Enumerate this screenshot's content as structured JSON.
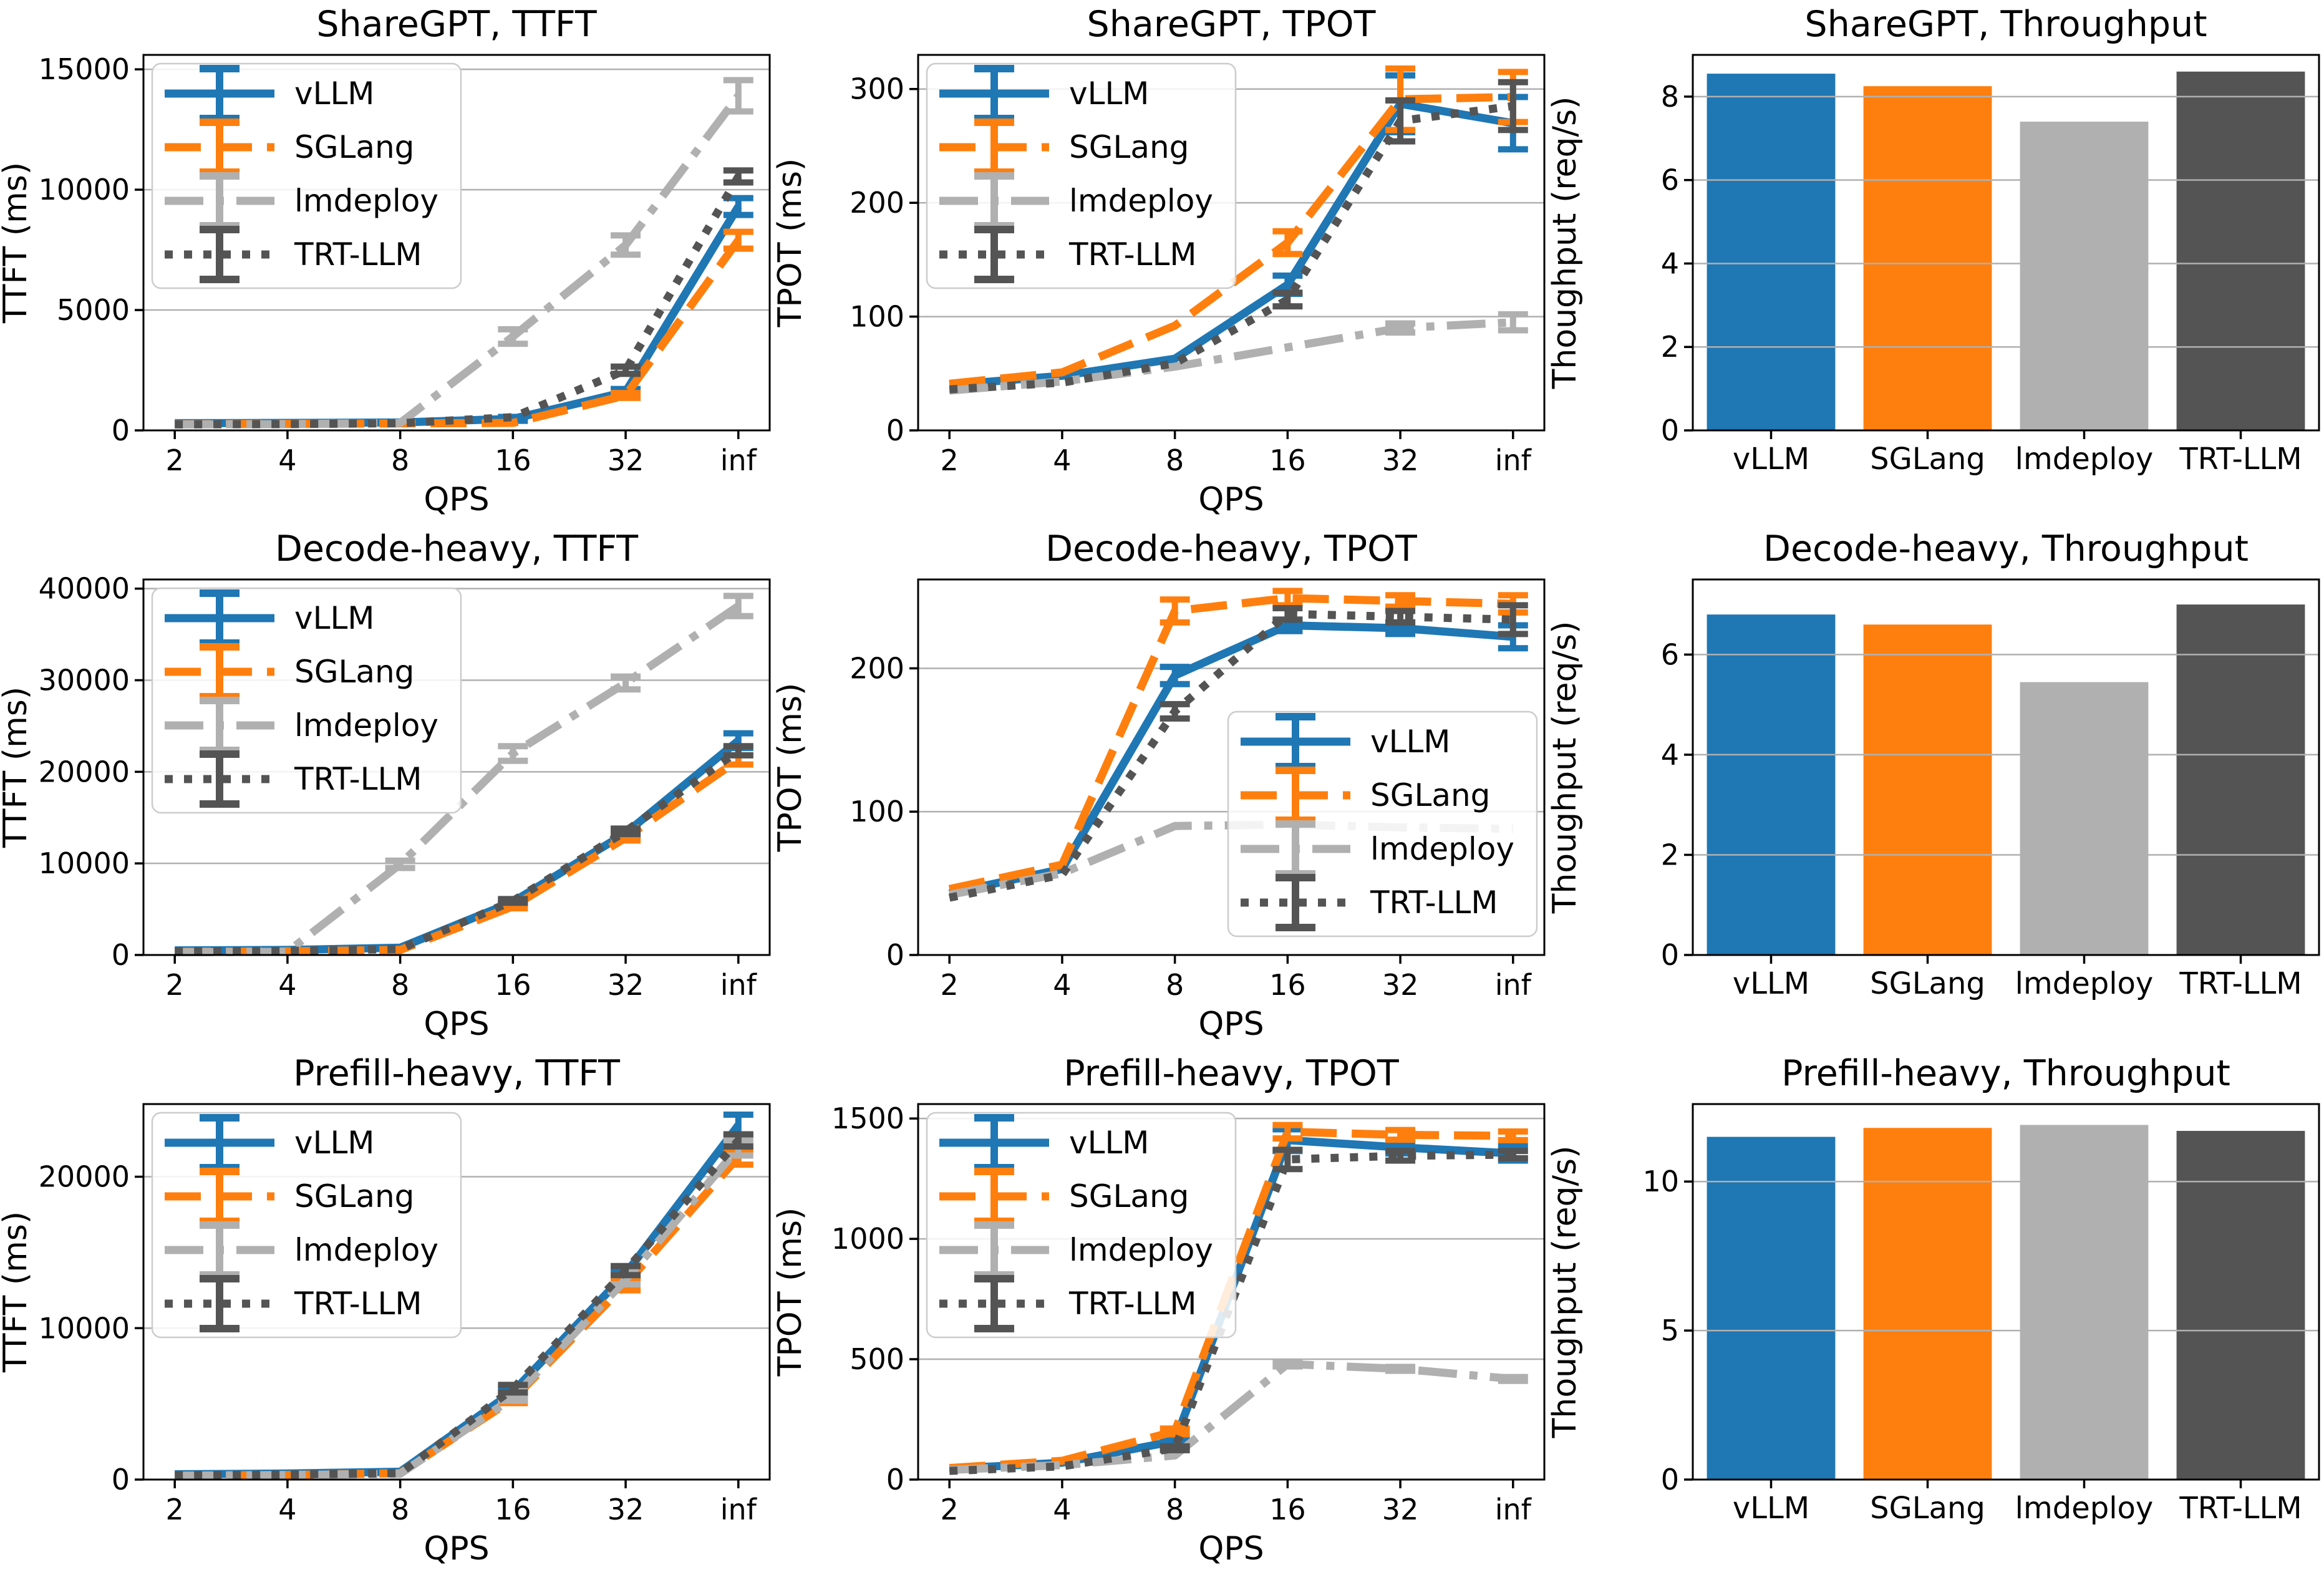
{
  "figure": {
    "background": "#ffffff",
    "frameworks": [
      "vLLM",
      "SGLang",
      "lmdeploy",
      "TRT-LLM"
    ],
    "accent_colors": {
      "vLLM": "#1f77b4",
      "SGLang": "#ff7f0e",
      "lmdeploy": "#b0b0b0",
      "TRT-LLM": "#545454"
    },
    "grid_color": "#b0b0b0",
    "spine_color": "#000000",
    "legend_border_color": "#cccccc"
  },
  "chart_data": [
    {
      "id": "sharegpt-ttft",
      "type": "line",
      "title": "ShareGPT, TTFT",
      "xlabel": "QPS",
      "ylabel": "TTFT (ms)",
      "x_labels": [
        "2",
        "4",
        "8",
        "16",
        "32",
        "inf"
      ],
      "ylim": [
        0,
        15600
      ],
      "yticks": [
        0,
        5000,
        10000,
        15000
      ],
      "grid": true,
      "legend": "upper-left",
      "series": [
        {
          "name": "vLLM",
          "color": "#1f77b4",
          "dash": "solid",
          "values": [
            300,
            310,
            330,
            480,
            1600,
            9300
          ],
          "yerr": [
            0,
            0,
            0,
            80,
            120,
            350
          ]
        },
        {
          "name": "SGLang",
          "color": "#ff7f0e",
          "dash": "dashed",
          "values": [
            260,
            270,
            290,
            310,
            1450,
            7900
          ],
          "yerr": [
            0,
            0,
            0,
            0,
            100,
            350
          ]
        },
        {
          "name": "lmdeploy",
          "color": "#b0b0b0",
          "dash": "dashdot",
          "values": [
            250,
            260,
            310,
            3900,
            7700,
            13900
          ],
          "yerr": [
            0,
            0,
            0,
            300,
            400,
            650
          ]
        },
        {
          "name": "TRT-LLM",
          "color": "#545454",
          "dash": "dotted",
          "values": [
            250,
            260,
            300,
            550,
            2500,
            10550
          ],
          "yerr": [
            0,
            0,
            0,
            0,
            150,
            250
          ]
        }
      ]
    },
    {
      "id": "sharegpt-tpot",
      "type": "line",
      "title": "ShareGPT, TPOT",
      "xlabel": "QPS",
      "ylabel": "TPOT (ms)",
      "x_labels": [
        "2",
        "4",
        "8",
        "16",
        "32",
        "inf"
      ],
      "ylim": [
        0,
        330
      ],
      "yticks": [
        0,
        100,
        200,
        300
      ],
      "grid": true,
      "legend": "upper-left",
      "series": [
        {
          "name": "vLLM",
          "color": "#1f77b4",
          "dash": "solid",
          "values": [
            40,
            48,
            63,
            128,
            287,
            270
          ],
          "yerr": [
            0,
            0,
            0,
            8,
            25,
            23
          ]
        },
        {
          "name": "SGLang",
          "color": "#ff7f0e",
          "dash": "dashed",
          "values": [
            41,
            51,
            92,
            165,
            291,
            293
          ],
          "yerr": [
            0,
            0,
            0,
            10,
            27,
            22
          ]
        },
        {
          "name": "lmdeploy",
          "color": "#b0b0b0",
          "dash": "dashdot",
          "values": [
            35,
            43,
            56,
            73,
            90,
            95
          ],
          "yerr": [
            0,
            0,
            0,
            0,
            4,
            7
          ]
        },
        {
          "name": "TRT-LLM",
          "color": "#545454",
          "dash": "dotted",
          "values": [
            36,
            42,
            59,
            115,
            272,
            285
          ],
          "yerr": [
            0,
            0,
            0,
            6,
            18,
            21
          ]
        }
      ]
    },
    {
      "id": "sharegpt-throughput",
      "type": "bar",
      "title": "ShareGPT, Throughput",
      "ylabel": "Thoughput (req/s)",
      "categories": [
        "vLLM",
        "SGLang",
        "lmdeploy",
        "TRT-LLM"
      ],
      "values": [
        8.55,
        8.25,
        7.4,
        8.6
      ],
      "colors": [
        "#1f77b4",
        "#ff7f0e",
        "#b0b0b0",
        "#545454"
      ],
      "ylim": [
        0,
        9
      ],
      "yticks": [
        0,
        2,
        4,
        6,
        8
      ],
      "grid": true
    },
    {
      "id": "decode-heavy-ttft",
      "type": "line",
      "title": "Decode-heavy, TTFT",
      "xlabel": "QPS",
      "ylabel": "TTFT (ms)",
      "x_labels": [
        "2",
        "4",
        "8",
        "16",
        "32",
        "inf"
      ],
      "ylim": [
        0,
        41000
      ],
      "yticks": [
        0,
        10000,
        20000,
        30000,
        40000
      ],
      "grid": true,
      "legend": "upper-left",
      "series": [
        {
          "name": "vLLM",
          "color": "#1f77b4",
          "dash": "solid",
          "values": [
            500,
            550,
            800,
            5800,
            13300,
            23400
          ],
          "yerr": [
            0,
            0,
            0,
            200,
            300,
            800
          ]
        },
        {
          "name": "SGLang",
          "color": "#ff7f0e",
          "dash": "dashed",
          "values": [
            350,
            400,
            550,
            5300,
            12800,
            21300
          ],
          "yerr": [
            0,
            0,
            0,
            200,
            300,
            500
          ]
        },
        {
          "name": "lmdeploy",
          "color": "#b0b0b0",
          "dash": "dashdot",
          "values": [
            300,
            350,
            9900,
            22000,
            29700,
            38100
          ],
          "yerr": [
            0,
            0,
            400,
            800,
            700,
            1100
          ]
        },
        {
          "name": "TRT-LLM",
          "color": "#545454",
          "dash": "dotted",
          "values": [
            400,
            450,
            650,
            5900,
            13500,
            22300
          ],
          "yerr": [
            0,
            0,
            0,
            200,
            300,
            500
          ]
        }
      ]
    },
    {
      "id": "decode-heavy-tpot",
      "type": "line",
      "title": "Decode-heavy, TPOT",
      "xlabel": "QPS",
      "ylabel": "TPOT (ms)",
      "x_labels": [
        "2",
        "4",
        "8",
        "16",
        "32",
        "inf"
      ],
      "ylim": [
        0,
        262
      ],
      "yticks": [
        0,
        100,
        200
      ],
      "grid": true,
      "legend": "center-right",
      "series": [
        {
          "name": "vLLM",
          "color": "#1f77b4",
          "dash": "solid",
          "values": [
            43,
            60,
            195,
            230,
            228,
            222
          ],
          "yerr": [
            0,
            0,
            6,
            4,
            4,
            8
          ]
        },
        {
          "name": "SGLang",
          "color": "#ff7f0e",
          "dash": "dashed",
          "values": [
            46,
            63,
            240,
            249,
            247,
            245
          ],
          "yerr": [
            0,
            0,
            8,
            5,
            4,
            6
          ]
        },
        {
          "name": "lmdeploy",
          "color": "#b0b0b0",
          "dash": "dashdot",
          "values": [
            42,
            57,
            90,
            91,
            89,
            88
          ],
          "yerr": [
            0,
            0,
            0,
            0,
            0,
            0
          ]
        },
        {
          "name": "TRT-LLM",
          "color": "#545454",
          "dash": "dotted",
          "values": [
            40,
            56,
            170,
            238,
            236,
            234
          ],
          "yerr": [
            0,
            0,
            5,
            4,
            4,
            10
          ]
        }
      ]
    },
    {
      "id": "decode-heavy-throughput",
      "type": "bar",
      "title": "Decode-heavy, Throughput",
      "ylabel": "Thoughput (req/s)",
      "categories": [
        "vLLM",
        "SGLang",
        "lmdeploy",
        "TRT-LLM"
      ],
      "values": [
        6.8,
        6.6,
        5.45,
        7.0
      ],
      "colors": [
        "#1f77b4",
        "#ff7f0e",
        "#b0b0b0",
        "#545454"
      ],
      "ylim": [
        0,
        7.5
      ],
      "yticks": [
        0,
        2,
        4,
        6
      ],
      "grid": true
    },
    {
      "id": "prefill-heavy-ttft",
      "type": "line",
      "title": "Prefill-heavy, TTFT",
      "xlabel": "QPS",
      "ylabel": "TTFT (ms)",
      "x_labels": [
        "2",
        "4",
        "8",
        "16",
        "32",
        "inf"
      ],
      "ylim": [
        0,
        24800
      ],
      "yticks": [
        0,
        10000,
        20000
      ],
      "grid": true,
      "legend": "upper-left",
      "series": [
        {
          "name": "vLLM",
          "color": "#1f77b4",
          "dash": "solid",
          "values": [
            350,
            400,
            520,
            5800,
            13600,
            23400
          ],
          "yerr": [
            0,
            0,
            0,
            200,
            300,
            700
          ]
        },
        {
          "name": "SGLang",
          "color": "#ff7f0e",
          "dash": "dashed",
          "values": [
            260,
            300,
            420,
            5300,
            12900,
            21300
          ],
          "yerr": [
            0,
            0,
            0,
            250,
            400,
            500
          ]
        },
        {
          "name": "lmdeploy",
          "color": "#b0b0b0",
          "dash": "dashdot",
          "values": [
            250,
            300,
            380,
            5400,
            13200,
            21900
          ],
          "yerr": [
            0,
            0,
            0,
            200,
            300,
            500
          ]
        },
        {
          "name": "TRT-LLM",
          "color": "#545454",
          "dash": "dotted",
          "values": [
            280,
            330,
            420,
            6000,
            13800,
            22400
          ],
          "yerr": [
            0,
            0,
            0,
            250,
            300,
            400
          ]
        }
      ]
    },
    {
      "id": "prefill-heavy-tpot",
      "type": "line",
      "title": "Prefill-heavy, TPOT",
      "xlabel": "QPS",
      "ylabel": "TPOT (ms)",
      "x_labels": [
        "2",
        "4",
        "8",
        "16",
        "32",
        "inf"
      ],
      "ylim": [
        0,
        1560
      ],
      "yticks": [
        0,
        500,
        1000,
        1500
      ],
      "grid": true,
      "legend": "upper-left",
      "series": [
        {
          "name": "vLLM",
          "color": "#1f77b4",
          "dash": "solid",
          "values": [
            45,
            70,
            160,
            1410,
            1380,
            1355
          ],
          "yerr": [
            0,
            0,
            10,
            45,
            25,
            30
          ]
        },
        {
          "name": "SGLang",
          "color": "#ff7f0e",
          "dash": "dashed",
          "values": [
            48,
            78,
            200,
            1445,
            1432,
            1428
          ],
          "yerr": [
            0,
            0,
            12,
            28,
            20,
            18
          ]
        },
        {
          "name": "lmdeploy",
          "color": "#b0b0b0",
          "dash": "dashdot",
          "values": [
            40,
            60,
            100,
            480,
            460,
            418
          ],
          "yerr": [
            0,
            0,
            0,
            10,
            8,
            8
          ]
        },
        {
          "name": "TRT-LLM",
          "color": "#545454",
          "dash": "dotted",
          "values": [
            36,
            55,
            130,
            1330,
            1345,
            1350
          ],
          "yerr": [
            0,
            0,
            8,
            40,
            20,
            15
          ]
        }
      ]
    },
    {
      "id": "prefill-heavy-throughput",
      "type": "bar",
      "title": "Prefill-heavy, Throughput",
      "ylabel": "Thoughput (req/s)",
      "categories": [
        "vLLM",
        "SGLang",
        "lmdeploy",
        "TRT-LLM"
      ],
      "values": [
        11.5,
        11.8,
        11.9,
        11.7
      ],
      "colors": [
        "#1f77b4",
        "#ff7f0e",
        "#b0b0b0",
        "#545454"
      ],
      "ylim": [
        0,
        12.6
      ],
      "yticks": [
        0,
        5,
        10
      ],
      "grid": true
    }
  ]
}
